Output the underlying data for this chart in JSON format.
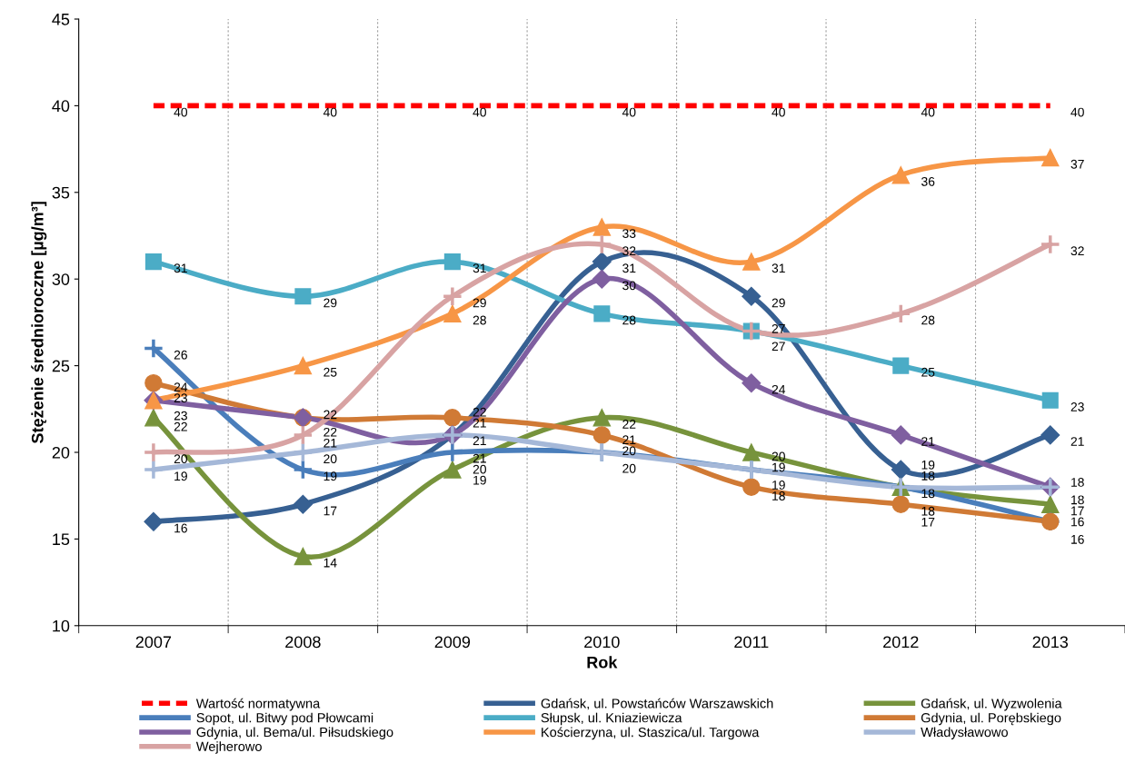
{
  "chart_data": {
    "type": "line",
    "xlabel": "Rok",
    "ylabel": "Stężenie średnioroczne [µg/m³]",
    "categories": [
      "2007",
      "2008",
      "2009",
      "2010",
      "2011",
      "2012",
      "2013"
    ],
    "ylim": [
      10,
      45
    ],
    "yticks": [
      10,
      15,
      20,
      25,
      30,
      35,
      40,
      45
    ],
    "grid": "x",
    "legend": "bottom",
    "data_labels": true,
    "series": [
      {
        "name": "Wartość normatywna",
        "color": "#ff0000",
        "line_style": "dashed",
        "marker": "none",
        "values": [
          40,
          40,
          40,
          40,
          40,
          40,
          40
        ]
      },
      {
        "name": "Gdańsk, ul. Powstańców Warszawskich",
        "color": "#376092",
        "marker": "diamond",
        "values": [
          16,
          17,
          21,
          31,
          29,
          19,
          21
        ]
      },
      {
        "name": "Gdańsk, ul. Wyzwolenia",
        "color": "#77933c",
        "marker": "triangle",
        "values": [
          22,
          14,
          19,
          22,
          20,
          18,
          17
        ]
      },
      {
        "name": "Sopot, ul. Bitwy pod Płowcami",
        "color": "#4a7ebb",
        "marker": "cross",
        "values": [
          26,
          19,
          20,
          20,
          19,
          18,
          16
        ]
      },
      {
        "name": "Słupsk, ul. Kniaziewicza",
        "color": "#4bacc6",
        "marker": "square",
        "values": [
          31,
          29,
          31,
          28,
          27,
          25,
          23
        ]
      },
      {
        "name": "Gdynia, ul. Porębskiego",
        "color": "#d07a35",
        "marker": "circle",
        "values": [
          24,
          22,
          22,
          21,
          18,
          17,
          16
        ]
      },
      {
        "name": "Gdynia, ul. Bema/ul. Piłsudskiego",
        "color": "#7f5fa0",
        "marker": "diamond",
        "values": [
          23,
          22,
          21,
          30,
          24,
          21,
          18
        ]
      },
      {
        "name": "Kościerzyna, ul. Staszica/ul. Targowa",
        "color": "#f79646",
        "marker": "triangle",
        "values": [
          23,
          25,
          28,
          33,
          31,
          36,
          37
        ]
      },
      {
        "name": "Władysławowo",
        "color": "#a5b8d8",
        "marker": "cross",
        "values": [
          19,
          20,
          21,
          20,
          19,
          18,
          18
        ]
      },
      {
        "name": "Wejherowo",
        "color": "#d8a3a3",
        "marker": "cross",
        "values": [
          20,
          21,
          29,
          32,
          27,
          28,
          32
        ]
      }
    ]
  }
}
